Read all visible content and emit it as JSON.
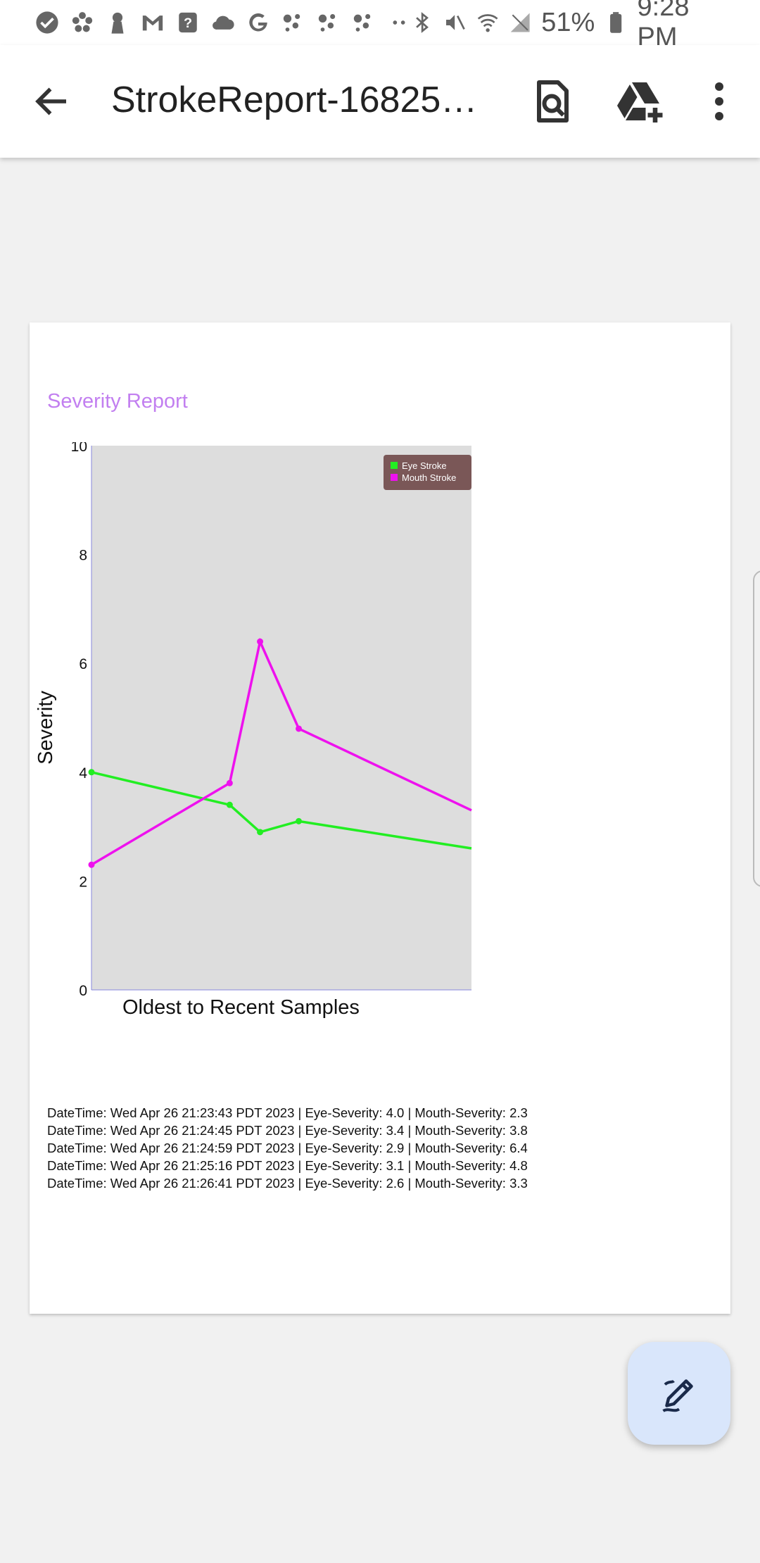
{
  "status_bar": {
    "battery": "51%",
    "time": "9:28 PM"
  },
  "app_bar": {
    "title": "StrokeReport-168256...",
    "icons": [
      "back-arrow-icon",
      "document-search-icon",
      "add-to-drive-icon",
      "more-vert-icon"
    ]
  },
  "report": {
    "title": "Severity Report",
    "log_entries": [
      "DateTime: Wed Apr 26 21:23:43 PDT 2023 | Eye-Severity: 4.0 | Mouth-Severity: 2.3",
      "DateTime: Wed Apr 26 21:24:45 PDT 2023 | Eye-Severity: 3.4 | Mouth-Severity: 3.8",
      "DateTime: Wed Apr 26 21:24:59 PDT 2023 | Eye-Severity: 2.9 | Mouth-Severity: 6.4",
      "DateTime: Wed Apr 26 21:25:16 PDT 2023 | Eye-Severity: 3.1 | Mouth-Severity: 4.8",
      "DateTime: Wed Apr 26 21:26:41 PDT 2023 | Eye-Severity: 2.6 | Mouth-Severity: 3.3"
    ]
  },
  "chart_data": {
    "type": "line",
    "title": "",
    "xlabel": "Oldest to Recent Samples",
    "ylabel": "Severity",
    "ylim": [
      0,
      10
    ],
    "yticks": [
      0,
      2,
      4,
      6,
      8,
      10
    ],
    "x": [
      0,
      1,
      1.22,
      1.5,
      2.75
    ],
    "xlim": [
      0,
      2.75
    ],
    "grid": false,
    "legend": "top-right",
    "background": "#dddddd",
    "series": [
      {
        "name": "Eye Stroke",
        "color": "#22ee22",
        "values": [
          4.0,
          3.4,
          2.9,
          3.1,
          2.6
        ]
      },
      {
        "name": "Mouth Stroke",
        "color": "#ee11ee",
        "values": [
          2.3,
          3.8,
          6.4,
          4.8,
          3.3
        ]
      }
    ]
  },
  "fab": {
    "icon": "edit-pen-icon"
  }
}
